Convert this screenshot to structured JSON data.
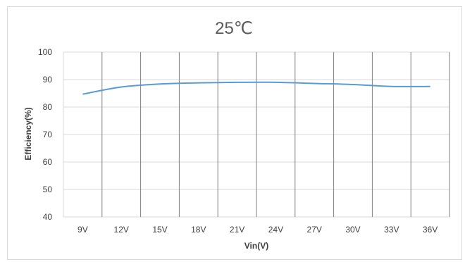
{
  "chart_data": {
    "type": "line",
    "title": "25℃",
    "xlabel": "Vin(V)",
    "ylabel": "Efficiency(%)",
    "categories": [
      "9V",
      "12V",
      "15V",
      "18V",
      "21V",
      "24V",
      "27V",
      "30V",
      "33V",
      "36V"
    ],
    "series": [
      {
        "values": [
          84.7,
          87.3,
          88.4,
          88.8,
          89.0,
          89.0,
          88.6,
          88.2,
          87.5,
          87.5
        ]
      }
    ],
    "ylim": [
      40,
      100
    ],
    "yticks": [
      40,
      50,
      60,
      70,
      80,
      90,
      100
    ],
    "grid": {
      "horizontal": true,
      "vertical": true
    },
    "legend": "none",
    "colors": {
      "line": "#5b9bd5",
      "grid": "#d9d9d9",
      "vertical_grid": "#7f7f7f"
    }
  }
}
